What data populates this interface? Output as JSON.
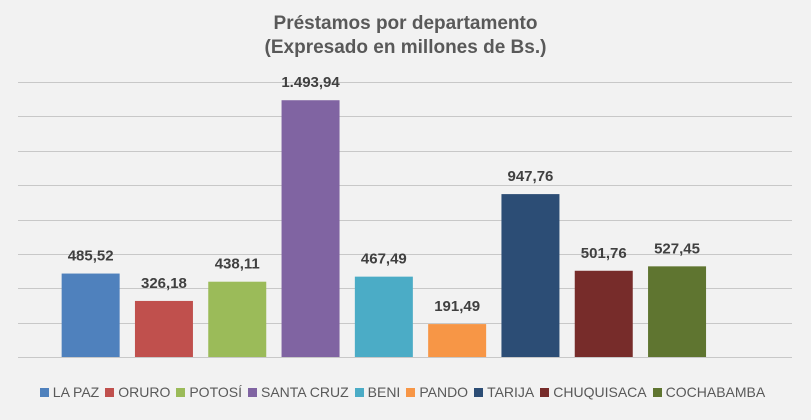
{
  "chart_data": {
    "type": "bar",
    "title": "Préstamos por departamento",
    "subtitle": "(Expresado en millones de Bs.)",
    "xlabel": "",
    "ylabel": "",
    "ylim": [
      0,
      1600
    ],
    "y_gridlines": [
      0,
      200,
      400,
      600,
      800,
      1000,
      1200,
      1400,
      1600
    ],
    "grid": true,
    "legend_position": "bottom",
    "categories": [
      "LA PAZ",
      "ORURO",
      "POTOSÍ",
      "SANTA CRUZ",
      "BENI",
      "PANDO",
      "TARIJA",
      "CHUQUISACA",
      "COCHABAMBA"
    ],
    "values": [
      485.52,
      326.18,
      438.11,
      1493.94,
      467.49,
      191.49,
      947.76,
      501.76,
      527.45
    ],
    "data_labels": [
      "485,52",
      "326,18",
      "438,11",
      "1.493,94",
      "467,49",
      "191,49",
      "947,76",
      "501,76",
      "527,45"
    ],
    "colors": [
      "#4f81bd",
      "#c0504d",
      "#9bbb59",
      "#8064a2",
      "#4bacc6",
      "#f79646",
      "#2c4d75",
      "#772c2a",
      "#5f7530"
    ]
  }
}
